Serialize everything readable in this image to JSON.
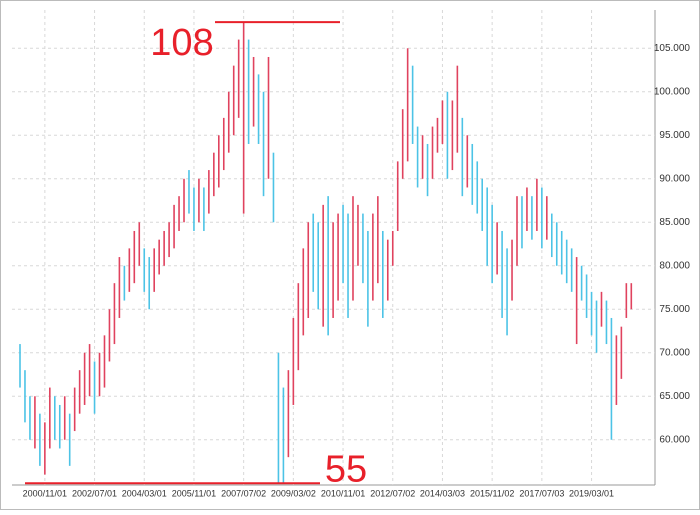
{
  "chart_data": {
    "type": "range-bar",
    "categories": [
      null,
      null,
      null,
      null,
      null,
      "2000/11/01",
      null,
      null,
      null,
      null,
      null,
      null,
      null,
      null,
      null,
      "2002/07/01",
      null,
      null,
      null,
      null,
      null,
      null,
      null,
      null,
      null,
      "2004/03/01",
      null,
      null,
      null,
      null,
      null,
      null,
      null,
      null,
      null,
      "2005/11/01",
      null,
      null,
      null,
      null,
      null,
      null,
      null,
      null,
      null,
      "2007/07/02",
      null,
      null,
      null,
      null,
      null,
      null,
      null,
      null,
      null,
      "2009/03/02",
      null,
      null,
      null,
      null,
      null,
      null,
      null,
      null,
      null,
      "2010/11/01",
      null,
      null,
      null,
      null,
      null,
      null,
      null,
      null,
      null,
      "2012/07/02",
      null,
      null,
      null,
      null,
      null,
      null,
      null,
      null,
      null,
      "2014/03/03",
      null,
      null,
      null,
      null,
      null,
      null,
      null,
      null,
      null,
      "2015/11/02",
      null,
      null,
      null,
      null,
      null,
      null,
      null,
      null,
      null,
      "2017/07/03",
      null,
      null,
      null,
      null,
      null,
      null,
      null,
      null,
      null,
      "2019/03/01",
      null,
      null,
      null,
      null,
      null,
      null,
      null,
      null
    ],
    "low": [
      66,
      62,
      60,
      59,
      57,
      56,
      59,
      60,
      59,
      60,
      57,
      61,
      63,
      64,
      65,
      63,
      65,
      66,
      69,
      71,
      74,
      76,
      77,
      78,
      80,
      77,
      75,
      77,
      79,
      80,
      81,
      82,
      84,
      85,
      86,
      84,
      85,
      84,
      86,
      88,
      89,
      91,
      93,
      95,
      97,
      86,
      94,
      96,
      94,
      88,
      90,
      85,
      55,
      55,
      58,
      64,
      68,
      72,
      74,
      77,
      75,
      73,
      72,
      74,
      76,
      78,
      74,
      76,
      80,
      78,
      73,
      76,
      78,
      74,
      76,
      80,
      84,
      90,
      92,
      94,
      89,
      90,
      88,
      90,
      93,
      94,
      90,
      91,
      93,
      88,
      89,
      87,
      86,
      84,
      80,
      78,
      79,
      74,
      72,
      76,
      80,
      82,
      84,
      83,
      84,
      82,
      83,
      81,
      80,
      79,
      78,
      77,
      71,
      76,
      74,
      72,
      70,
      73,
      71,
      60,
      64,
      67,
      74,
      75
    ],
    "high": [
      71,
      68,
      65,
      65,
      63,
      62,
      66,
      65,
      64,
      65,
      63,
      66,
      68,
      70,
      71,
      69,
      70,
      72,
      75,
      78,
      81,
      80,
      82,
      84,
      85,
      82,
      81,
      82,
      83,
      84,
      85,
      87,
      88,
      90,
      91,
      89,
      90,
      89,
      91,
      93,
      95,
      97,
      100,
      103,
      106,
      108,
      106,
      104,
      102,
      100,
      104,
      93,
      70,
      66,
      68,
      74,
      78,
      82,
      85,
      86,
      85,
      87,
      88,
      85,
      86,
      87,
      86,
      88,
      87,
      86,
      84,
      86,
      88,
      84,
      83,
      84,
      92,
      98,
      105,
      103,
      96,
      95,
      94,
      96,
      97,
      99,
      100,
      99,
      103,
      97,
      95,
      94,
      92,
      90,
      89,
      87,
      85,
      84,
      82,
      83,
      88,
      88,
      89,
      88,
      90,
      89,
      88,
      86,
      85,
      84,
      83,
      82,
      81,
      80,
      79,
      77,
      76,
      77,
      76,
      74,
      72,
      73,
      78,
      78
    ],
    "rising": [
      false,
      false,
      false,
      true,
      false,
      true,
      true,
      false,
      false,
      true,
      false,
      true,
      true,
      true,
      true,
      false,
      true,
      true,
      true,
      true,
      true,
      false,
      true,
      true,
      true,
      false,
      false,
      true,
      true,
      true,
      true,
      true,
      true,
      true,
      false,
      false,
      true,
      false,
      true,
      true,
      true,
      true,
      true,
      true,
      true,
      true,
      false,
      true,
      false,
      false,
      true,
      false,
      false,
      false,
      true,
      true,
      true,
      true,
      true,
      false,
      false,
      true,
      false,
      true,
      true,
      false,
      false,
      true,
      true,
      false,
      false,
      true,
      true,
      false,
      true,
      true,
      true,
      true,
      true,
      false,
      false,
      true,
      false,
      true,
      true,
      true,
      false,
      true,
      true,
      false,
      true,
      false,
      false,
      false,
      false,
      false,
      true,
      false,
      false,
      true,
      true,
      false,
      true,
      false,
      true,
      false,
      true,
      false,
      false,
      false,
      false,
      false,
      true,
      false,
      false,
      false,
      false,
      true,
      false,
      false,
      true,
      true,
      true,
      true
    ],
    "up_color": "#e0425e",
    "down_color": "#4cc3e6",
    "ylim": [
      54.8,
      109.4
    ],
    "yticks": [
      {
        "value": 60,
        "label": "60.000"
      },
      {
        "value": 65,
        "label": "65.000"
      },
      {
        "value": 70,
        "label": "70.000"
      },
      {
        "value": 75,
        "label": "75.000"
      },
      {
        "value": 80,
        "label": "80.000"
      },
      {
        "value": 85,
        "label": "85.000"
      },
      {
        "value": 90,
        "label": "90.000"
      },
      {
        "value": 95,
        "label": "95.000"
      },
      {
        "value": 100,
        "label": "100.000"
      },
      {
        "value": 105,
        "label": "105.000"
      }
    ],
    "grid": true,
    "annotations": [
      {
        "text": "108",
        "value": 108,
        "color": "#e8202a"
      },
      {
        "text": "55",
        "value": 55,
        "color": "#e8202a"
      }
    ]
  }
}
